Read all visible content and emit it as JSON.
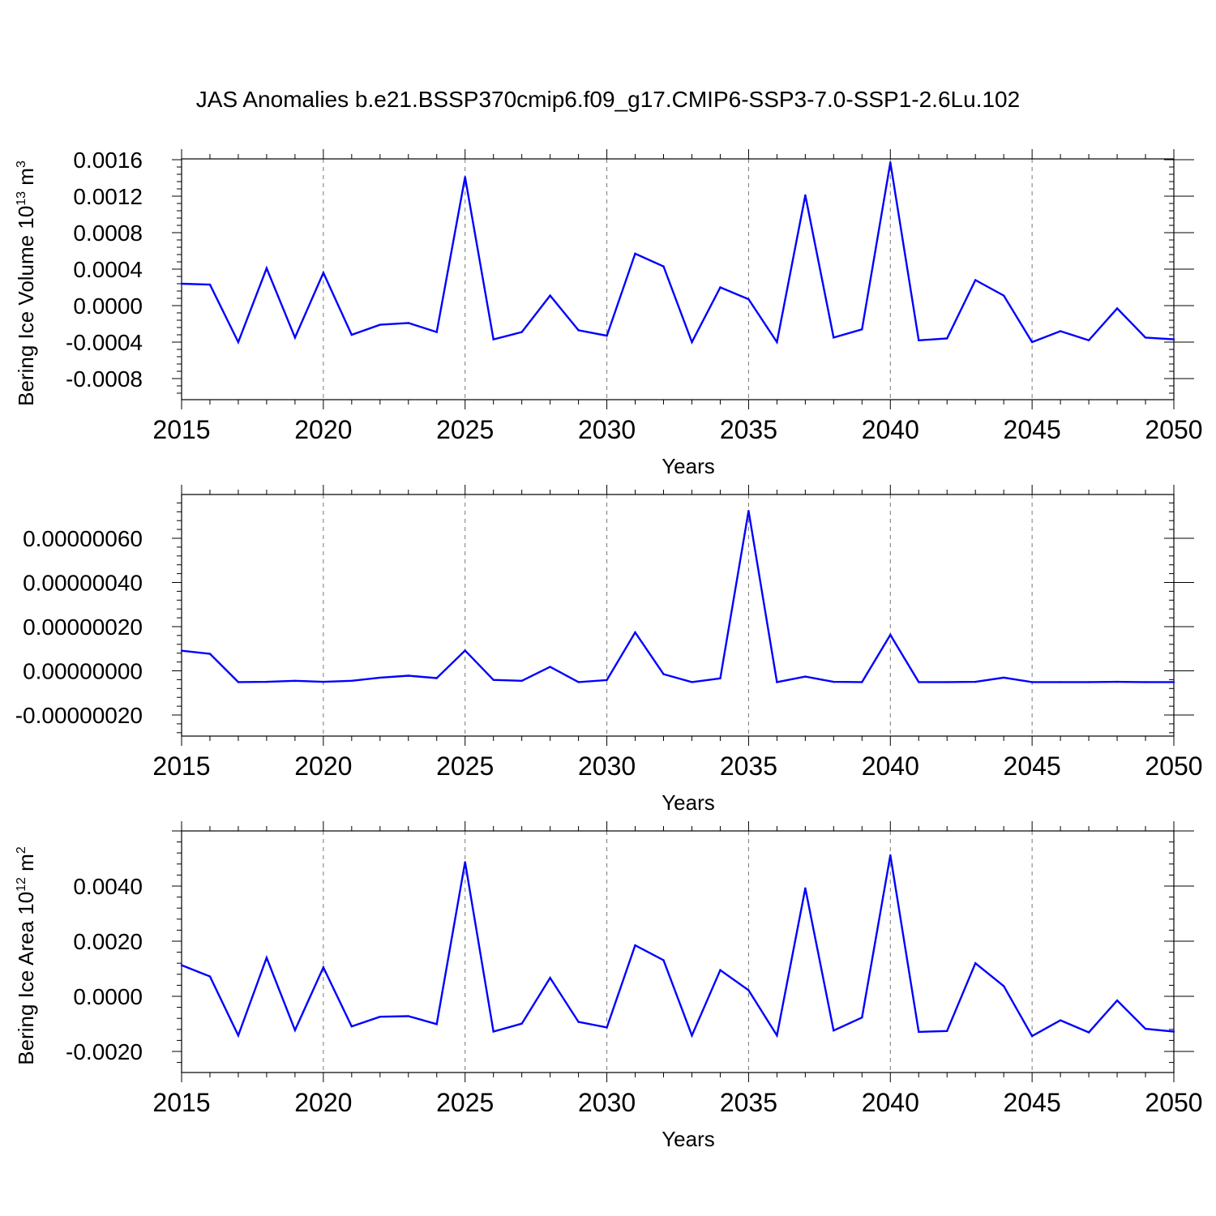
{
  "title": "JAS Anomalies b.e21.BSSP370cmip6.f09_g17.CMIP6-SSP3-7.0-SSP1-2.6Lu.102",
  "chart_data": [
    {
      "type": "line",
      "title": "JAS Anomalies b.e21.BSSP370cmip6.f09_g17.CMIP6-SSP3-7.0-SSP1-2.6Lu.102",
      "xlabel": "Years",
      "ylabel": "Bering Ice Volume 10",
      "ylabel_sup": "13",
      "ylabel_unit": " m",
      "ylabel_unit_sup": "3",
      "xlim": [
        2015,
        2050
      ],
      "ylim": [
        -0.0008,
        0.0016
      ],
      "xticks": [
        2015,
        2020,
        2025,
        2030,
        2035,
        2040,
        2045,
        2050
      ],
      "xtick_labels": [
        "2015",
        "2020",
        "2025",
        "2030",
        "2035",
        "2040",
        "2045",
        "2050"
      ],
      "yticks": [
        -0.0008,
        -0.0004,
        0.0,
        0.0004,
        0.0008,
        0.0012,
        0.0016
      ],
      "ytick_labels": [
        "-0.0008",
        "-0.0004",
        "0.0000",
        "0.0004",
        "0.0008",
        "0.0012",
        "0.0016"
      ],
      "grid": "vertical dashed at major x ticks",
      "line_color": "#0000ff",
      "x": [
        2015,
        2016,
        2017,
        2018,
        2019,
        2020,
        2021,
        2022,
        2023,
        2024,
        2025,
        2026,
        2027,
        2028,
        2029,
        2030,
        2031,
        2032,
        2033,
        2034,
        2035,
        2036,
        2037,
        2038,
        2039,
        2040,
        2041,
        2042,
        2043,
        2044,
        2045,
        2046,
        2047,
        2048,
        2049,
        2050
      ],
      "y": [
        0.00024,
        0.00023,
        -0.0004,
        0.00041,
        -0.00035,
        0.00036,
        -0.00032,
        -0.00021,
        -0.00019,
        -0.00029,
        0.00141,
        -0.00037,
        -0.00029,
        0.00011,
        -0.00027,
        -0.00033,
        0.00057,
        0.00043,
        -0.0004,
        0.0002,
        7e-05,
        -0.0004,
        0.00121,
        -0.00035,
        -0.00026,
        0.00157,
        -0.00038,
        -0.00036,
        0.00028,
        0.00011,
        -0.0004,
        -0.00028,
        -0.00038,
        -3e-05,
        -0.00035,
        -0.00037
      ]
    },
    {
      "type": "line",
      "title": "",
      "xlabel": "Years",
      "ylabel": "",
      "xlim": [
        2015,
        2050
      ],
      "ylim": [
        -2e-07,
        8e-07
      ],
      "xticks": [
        2015,
        2020,
        2025,
        2030,
        2035,
        2040,
        2045,
        2050
      ],
      "xtick_labels": [
        "2015",
        "2020",
        "2025",
        "2030",
        "2035",
        "2040",
        "2045",
        "2050"
      ],
      "yticks": [
        -2e-07,
        0.0,
        2e-07,
        4e-07,
        6e-07
      ],
      "ytick_labels": [
        "-0.00000020",
        "0.00000000",
        "0.00000020",
        "0.00000040",
        "0.00000060"
      ],
      "grid": "vertical dashed at major x ticks",
      "line_color": "#0000ff",
      "x": [
        2015,
        2016,
        2017,
        2018,
        2019,
        2020,
        2021,
        2022,
        2023,
        2024,
        2025,
        2026,
        2027,
        2028,
        2029,
        2030,
        2031,
        2032,
        2033,
        2034,
        2035,
        2036,
        2037,
        2038,
        2039,
        2040,
        2041,
        2042,
        2043,
        2044,
        2045,
        2046,
        2047,
        2048,
        2049,
        2050
      ],
      "y": [
        9.1e-08,
        7.7e-08,
        -5.1e-08,
        -5e-08,
        -4.5e-08,
        -5e-08,
        -4.5e-08,
        -3.1e-08,
        -2.2e-08,
        -3.3e-08,
        9.2e-08,
        -4.1e-08,
        -4.5e-08,
        1.8e-08,
        -5.1e-08,
        -4.2e-08,
        1.74e-07,
        -1.5e-08,
        -5.1e-08,
        -3.4e-08,
        7.24e-07,
        -5.1e-08,
        -2.6e-08,
        -5e-08,
        -5.1e-08,
        1.63e-07,
        -5.1e-08,
        -5.1e-08,
        -5e-08,
        -3.1e-08,
        -5.1e-08,
        -5.1e-08,
        -5.1e-08,
        -5e-08,
        -5.1e-08,
        -5.1e-08
      ]
    },
    {
      "type": "line",
      "title": "",
      "xlabel": "Years",
      "ylabel": "Bering Ice Area 10",
      "ylabel_sup": "12",
      "ylabel_unit": " m",
      "ylabel_unit_sup": "2",
      "xlim": [
        2015,
        2050
      ],
      "ylim": [
        -0.002,
        0.006
      ],
      "xticks": [
        2015,
        2020,
        2025,
        2030,
        2035,
        2040,
        2045,
        2050
      ],
      "xtick_labels": [
        "2015",
        "2020",
        "2025",
        "2030",
        "2035",
        "2040",
        "2045",
        "2050"
      ],
      "yticks": [
        -0.002,
        0.0,
        0.002,
        0.004
      ],
      "ytick_labels": [
        "-0.0020",
        "0.0000",
        "0.0020",
        "0.0040"
      ],
      "grid": "vertical dashed at major x ticks",
      "line_color": "#0000ff",
      "x": [
        2015,
        2016,
        2017,
        2018,
        2019,
        2020,
        2021,
        2022,
        2023,
        2024,
        2025,
        2026,
        2027,
        2028,
        2029,
        2030,
        2031,
        2032,
        2033,
        2034,
        2035,
        2036,
        2037,
        2038,
        2039,
        2040,
        2041,
        2042,
        2043,
        2044,
        2045,
        2046,
        2047,
        2048,
        2049,
        2050
      ],
      "y": [
        0.00113,
        0.00072,
        -0.00142,
        0.0014,
        -0.00123,
        0.00105,
        -0.00109,
        -0.00074,
        -0.00072,
        -0.00101,
        0.00487,
        -0.00128,
        -0.00099,
        0.00067,
        -0.00093,
        -0.00113,
        0.00185,
        0.00131,
        -0.00142,
        0.00095,
        0.00022,
        -0.00142,
        0.00392,
        -0.00124,
        -0.00077,
        0.00512,
        -0.00129,
        -0.00126,
        0.0012,
        0.00037,
        -0.00144,
        -0.00087,
        -0.00131,
        -0.00015,
        -0.00118,
        -0.00128
      ]
    }
  ]
}
